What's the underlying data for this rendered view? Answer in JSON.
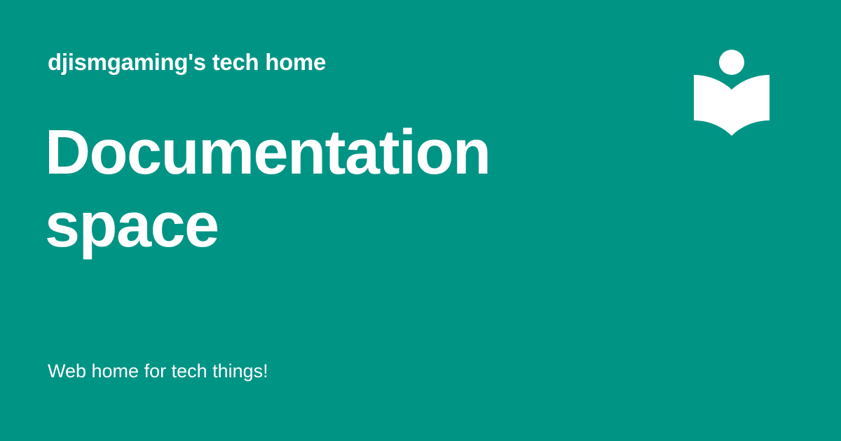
{
  "header": {
    "site_name": "djismgaming's tech home"
  },
  "title": {
    "line1": "Documentation",
    "line2": "space"
  },
  "footer": {
    "tagline": "Web home for tech things!"
  },
  "logo": {
    "icon": "reader-book-icon",
    "color": "#ffffff"
  },
  "theme": {
    "background": "#009485",
    "text": "#ffffff"
  }
}
